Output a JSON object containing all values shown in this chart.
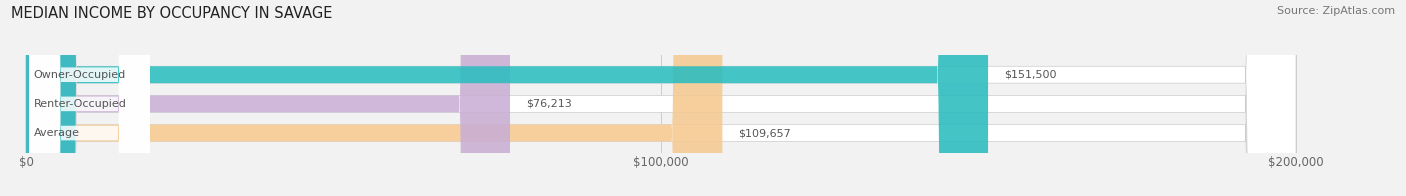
{
  "title": "MEDIAN INCOME BY OCCUPANCY IN SAVAGE",
  "source": "Source: ZipAtlas.com",
  "categories": [
    "Average",
    "Renter-Occupied",
    "Owner-Occupied"
  ],
  "values": [
    109657,
    76213,
    151500
  ],
  "bar_colors": [
    "#f5c990",
    "#c9aed4",
    "#2bbcbf"
  ],
  "bar_labels": [
    "$109,657",
    "$76,213",
    "$151,500"
  ],
  "label_colors": [
    "#333333",
    "#333333",
    "#ffffff"
  ],
  "xlim": [
    0,
    200000
  ],
  "xticks": [
    0,
    100000,
    200000
  ],
  "xtick_labels": [
    "$0",
    "$100,000",
    "$200,000"
  ],
  "background_color": "#f2f2f2",
  "bar_bg_color": "#e0e0e0",
  "title_fontsize": 10.5,
  "source_fontsize": 8,
  "label_fontsize": 8,
  "tick_fontsize": 8.5
}
